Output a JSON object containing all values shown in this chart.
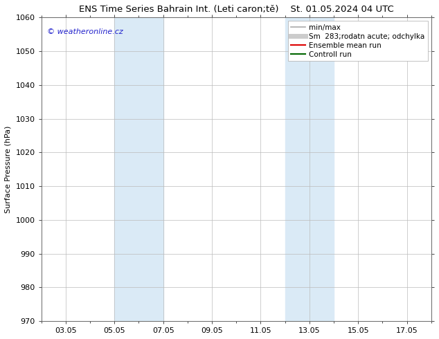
{
  "title_left": "ENS Time Series Bahrain Int. (Leti caron;tě)",
  "title_right": "St. 01.05.2024 04 UTC",
  "ylabel": "Surface Pressure (hPa)",
  "ylim": [
    970,
    1060
  ],
  "yticks": [
    970,
    980,
    990,
    1000,
    1010,
    1020,
    1030,
    1040,
    1050,
    1060
  ],
  "xtick_labels": [
    "03.05",
    "05.05",
    "07.05",
    "09.05",
    "11.05",
    "13.05",
    "15.05",
    "17.05"
  ],
  "xtick_positions": [
    2,
    4,
    6,
    8,
    10,
    12,
    14,
    16
  ],
  "xlim": [
    1,
    17
  ],
  "shaded_bands": [
    {
      "xmin": 4.0,
      "xmax": 6.0
    },
    {
      "xmin": 11.0,
      "xmax": 13.0
    }
  ],
  "shade_color": "#daeaf6",
  "watermark_text": "© weatheronline.cz",
  "watermark_color": "#2222cc",
  "legend_entries": [
    {
      "label": "min/max",
      "color": "#aaaaaa",
      "lw": 1.2
    },
    {
      "label": "Sm  283;rodatn acute; odchylka",
      "color": "#cccccc",
      "lw": 5
    },
    {
      "label": "Ensemble mean run",
      "color": "#dd0000",
      "lw": 1.5
    },
    {
      "label": "Controll run",
      "color": "#006600",
      "lw": 1.5
    }
  ],
  "bg_color": "#ffffff",
  "grid_color": "#bbbbbb",
  "title_fontsize": 9.5,
  "axis_fontsize": 8,
  "tick_fontsize": 8,
  "legend_fontsize": 7.5
}
